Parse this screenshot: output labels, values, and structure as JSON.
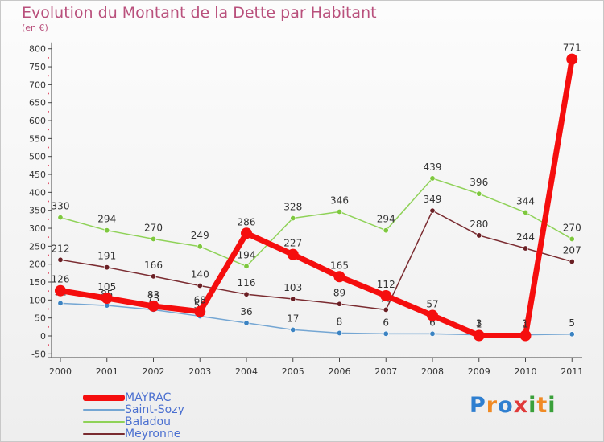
{
  "title": "Evolution du Montant de la Dette par Habitant",
  "subtitle": "(en €)",
  "logo": {
    "text": "Proxiti",
    "letters": [
      {
        "ch": "P",
        "color": "#2f7fd0"
      },
      {
        "ch": "r",
        "color": "#f08a24"
      },
      {
        "ch": "o",
        "color": "#2f7fd0"
      },
      {
        "ch": "x",
        "color": "#e03a3a"
      },
      {
        "ch": "i",
        "color": "#3aa03a"
      },
      {
        "ch": "t",
        "color": "#f08a24"
      },
      {
        "ch": "i",
        "color": "#3aa03a"
      }
    ]
  },
  "chart_data": {
    "type": "line",
    "title": "Evolution du Montant de la Dette par Habitant",
    "subtitle": "(en €)",
    "xlabel": "",
    "ylabel": "",
    "categories": [
      "2000",
      "2001",
      "2002",
      "2003",
      "2004",
      "2005",
      "2006",
      "2007",
      "2008",
      "2009",
      "2010",
      "2011"
    ],
    "ylim": [
      -50,
      800
    ],
    "yticks": [
      -50,
      0,
      50,
      100,
      150,
      200,
      250,
      300,
      350,
      400,
      450,
      500,
      550,
      600,
      650,
      700,
      750,
      800
    ],
    "grid": false,
    "legend_position": "bottom-left",
    "series": [
      {
        "name": "Baladou",
        "color": "#8fd258",
        "dot": "#7ec83e",
        "width": 1.5,
        "values": [
          330,
          294,
          270,
          249,
          194,
          328,
          346,
          294,
          439,
          396,
          344,
          270
        ],
        "labels": [
          "330",
          "294",
          "270",
          "249",
          "194",
          "328",
          "346",
          "294",
          "439",
          "396",
          "344",
          "270"
        ]
      },
      {
        "name": "Meyronne",
        "color": "#7a2b30",
        "dot": "#6a1f24",
        "width": 1.5,
        "values": [
          212,
          191,
          166,
          140,
          116,
          103,
          89,
          73,
          349,
          280,
          244,
          207
        ],
        "labels": [
          "212",
          "191",
          "166",
          "140",
          "116",
          "103",
          "89",
          "73",
          "349",
          "280",
          "244",
          "207"
        ]
      },
      {
        "name": "Saint-Sozy",
        "color": "#74a6d3",
        "dot": "#3b83c2",
        "width": 1.5,
        "values": [
          91,
          85,
          73,
          55,
          36,
          17,
          8,
          6,
          6,
          3,
          3,
          5
        ],
        "labels": [
          "91",
          "85",
          "73",
          "55",
          "36",
          "17",
          "8",
          "6",
          "6",
          "3",
          "3",
          "5"
        ]
      },
      {
        "name": "MAYRAC",
        "color": "#f50e0e",
        "dot": "#f50e0e",
        "width": 7,
        "values": [
          126,
          105,
          83,
          68,
          286,
          227,
          165,
          112,
          57,
          1,
          1,
          771
        ],
        "labels": [
          "126",
          "105",
          "83",
          "68",
          "286",
          "227",
          "165",
          "112",
          "57",
          "1",
          "1",
          "771"
        ]
      }
    ]
  },
  "legend": [
    {
      "name": "MAYRAC",
      "color": "#f50e0e",
      "text_color": "#4a6fd0",
      "thickness": 8
    },
    {
      "name": "Saint-Sozy",
      "color": "#74a6d3",
      "text_color": "#4a6fd0",
      "thickness": 2
    },
    {
      "name": "Baladou",
      "color": "#8fd258",
      "text_color": "#4a6fd0",
      "thickness": 2
    },
    {
      "name": "Meyronne",
      "color": "#7a2b30",
      "text_color": "#4a6fd0",
      "thickness": 2
    }
  ]
}
